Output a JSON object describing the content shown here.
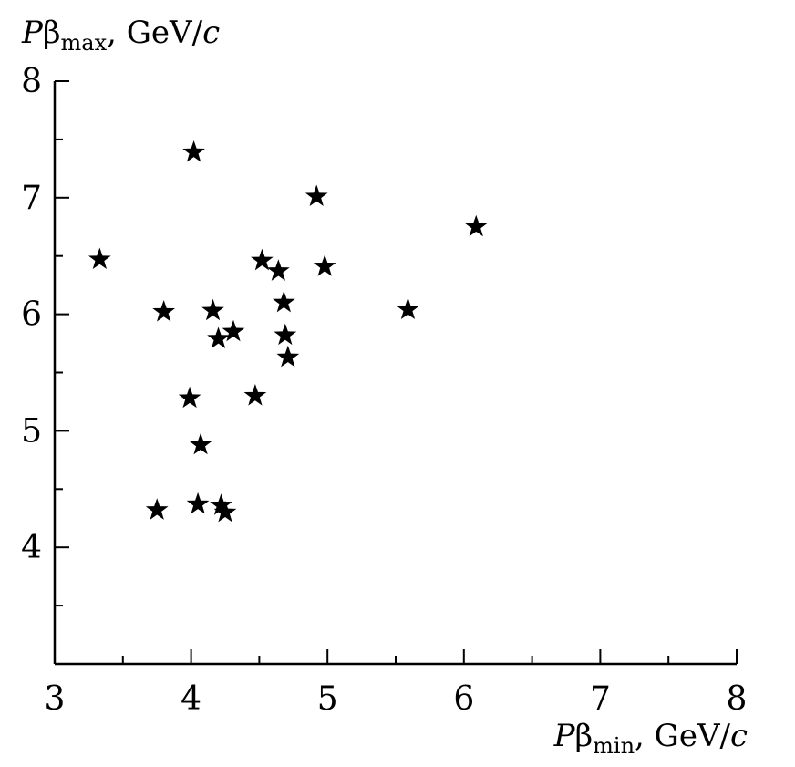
{
  "chart_data": {
    "type": "scatter",
    "marker": "star",
    "color": "#000000",
    "xlabel": {
      "var": "P",
      "greek": "β",
      "sub": "min",
      "sep": ", GeV/",
      "unit": "c"
    },
    "ylabel": {
      "var": "P",
      "greek": "β",
      "sub": "max",
      "sep": ", GeV/",
      "unit": "c"
    },
    "xlim": [
      3,
      8
    ],
    "ylim": [
      3,
      8
    ],
    "x_major_ticks": [
      3,
      4,
      5,
      6,
      7,
      8
    ],
    "x_minor_ticks": [
      3.5,
      4.5,
      5.5,
      6.5,
      7.5
    ],
    "y_major_ticks": [
      4,
      5,
      6,
      7,
      8
    ],
    "y_minor_ticks": [
      3.5,
      4.5,
      5.5,
      6.5,
      7.5
    ],
    "x_tick_labels": [
      "3",
      "4",
      "5",
      "6",
      "7",
      "8"
    ],
    "y_tick_labels": [
      "4",
      "5",
      "6",
      "7",
      "8"
    ],
    "grid": false,
    "legend": "none",
    "points": [
      {
        "x": 3.33,
        "y": 6.47
      },
      {
        "x": 4.02,
        "y": 7.39
      },
      {
        "x": 3.8,
        "y": 6.02
      },
      {
        "x": 4.16,
        "y": 6.03
      },
      {
        "x": 4.2,
        "y": 5.79
      },
      {
        "x": 4.31,
        "y": 5.85
      },
      {
        "x": 3.99,
        "y": 5.28
      },
      {
        "x": 4.07,
        "y": 4.88
      },
      {
        "x": 3.75,
        "y": 4.32
      },
      {
        "x": 4.05,
        "y": 4.37
      },
      {
        "x": 4.22,
        "y": 4.36
      },
      {
        "x": 4.25,
        "y": 4.3
      },
      {
        "x": 4.47,
        "y": 5.3
      },
      {
        "x": 4.52,
        "y": 6.46
      },
      {
        "x": 4.64,
        "y": 6.37
      },
      {
        "x": 4.68,
        "y": 6.1
      },
      {
        "x": 4.69,
        "y": 5.82
      },
      {
        "x": 4.71,
        "y": 5.63
      },
      {
        "x": 4.92,
        "y": 7.01
      },
      {
        "x": 4.98,
        "y": 6.41
      },
      {
        "x": 5.59,
        "y": 6.04
      },
      {
        "x": 6.09,
        "y": 6.75
      }
    ]
  }
}
